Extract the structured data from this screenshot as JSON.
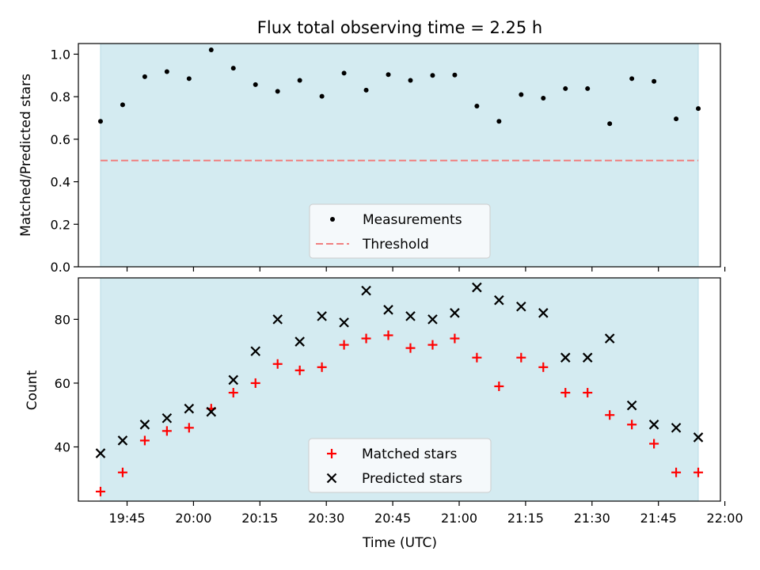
{
  "chart_data": [
    {
      "type": "scatter",
      "title": "Flux total observing time = 2.25 h",
      "ylabel": "Matched/Predicted stars",
      "xlabel": "",
      "ylim": [
        0.0,
        1.05
      ],
      "yticks": [
        0.0,
        0.2,
        0.4,
        0.6,
        0.8,
        1.0
      ],
      "ytick_labels": [
        "0.0",
        "0.2",
        "0.4",
        "0.6",
        "0.8",
        "1.0"
      ],
      "shaded_span": [
        "19:39",
        "21:54"
      ],
      "legend_position": "lower center",
      "series": [
        {
          "name": "Measurements",
          "marker": "dot",
          "color": "#000000",
          "x": [
            "19:39",
            "19:44",
            "19:49",
            "19:54",
            "19:59",
            "20:04",
            "20:09",
            "20:14",
            "20:19",
            "20:24",
            "20:29",
            "20:34",
            "20:39",
            "20:44",
            "20:49",
            "20:54",
            "20:59",
            "21:04",
            "21:09",
            "21:14",
            "21:19",
            "21:24",
            "21:29",
            "21:34",
            "21:39",
            "21:44",
            "21:49",
            "21:54"
          ],
          "y": [
            0.684,
            0.762,
            0.894,
            0.918,
            0.885,
            1.02,
            0.934,
            0.857,
            0.825,
            0.877,
            0.802,
            0.911,
            0.831,
            0.904,
            0.877,
            0.9,
            0.902,
            0.756,
            0.684,
            0.81,
            0.793,
            0.838,
            0.838,
            0.673,
            0.885,
            0.872,
            0.696,
            0.744
          ]
        },
        {
          "name": "Threshold",
          "marker": "dashed-line",
          "color": "#f08080",
          "y_constant": 0.5
        }
      ]
    },
    {
      "type": "scatter",
      "title": "",
      "ylabel": "Count",
      "xlabel": "Time (UTC)",
      "ylim": [
        23,
        93
      ],
      "yticks": [
        40,
        60,
        80
      ],
      "ytick_labels": [
        "40",
        "60",
        "80"
      ],
      "xticks": [
        "19:45",
        "20:00",
        "20:15",
        "20:30",
        "20:45",
        "21:00",
        "21:15",
        "21:30",
        "21:45",
        "22:00"
      ],
      "xlim": [
        "19:34",
        "21:59"
      ],
      "shaded_span": [
        "19:39",
        "21:54"
      ],
      "legend_position": "lower center",
      "series": [
        {
          "name": "Matched stars",
          "marker": "plus",
          "color": "#ff0000",
          "x": [
            "19:39",
            "19:44",
            "19:49",
            "19:54",
            "19:59",
            "20:04",
            "20:09",
            "20:14",
            "20:19",
            "20:24",
            "20:29",
            "20:34",
            "20:39",
            "20:44",
            "20:49",
            "20:54",
            "20:59",
            "21:04",
            "21:09",
            "21:14",
            "21:19",
            "21:24",
            "21:29",
            "21:34",
            "21:39",
            "21:44",
            "21:49",
            "21:54"
          ],
          "y": [
            26,
            32,
            42,
            45,
            46,
            52,
            57,
            60,
            66,
            64,
            65,
            72,
            74,
            75,
            71,
            72,
            74,
            68,
            59,
            68,
            65,
            57,
            57,
            50,
            47,
            41,
            32,
            32
          ]
        },
        {
          "name": "Predicted stars",
          "marker": "x",
          "color": "#000000",
          "x": [
            "19:39",
            "19:44",
            "19:49",
            "19:54",
            "19:59",
            "20:04",
            "20:09",
            "20:14",
            "20:19",
            "20:24",
            "20:29",
            "20:34",
            "20:39",
            "20:44",
            "20:49",
            "20:54",
            "20:59",
            "21:04",
            "21:09",
            "21:14",
            "21:19",
            "21:24",
            "21:29",
            "21:34",
            "21:39",
            "21:44",
            "21:49",
            "21:54"
          ],
          "y": [
            38,
            42,
            47,
            49,
            52,
            51,
            61,
            70,
            80,
            73,
            81,
            79,
            89,
            83,
            81,
            80,
            82,
            90,
            86,
            84,
            82,
            68,
            68,
            74,
            53,
            47,
            46,
            43
          ]
        }
      ]
    }
  ],
  "colors": {
    "shade": "#d4ebf1",
    "shade_edge": "#b9dbe5",
    "legend_bg": "#f5f9fb"
  }
}
